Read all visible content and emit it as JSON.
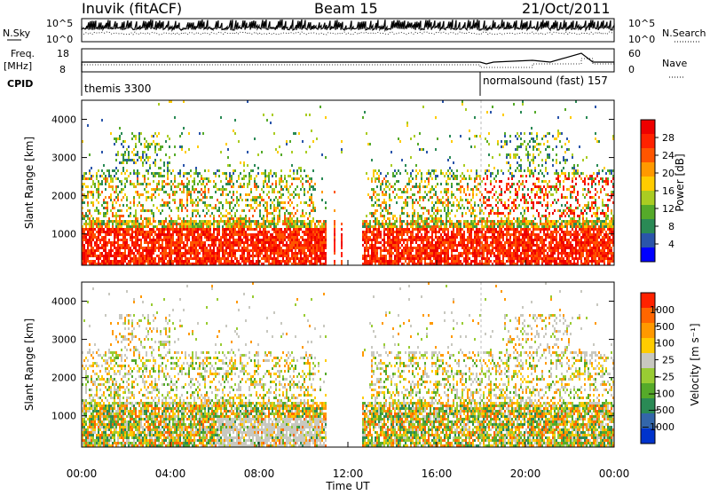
{
  "header": {
    "station": "Inuvik (fitACF)",
    "beam": "Beam 15",
    "date": "21/Oct/2011"
  },
  "panels": {
    "nsky": {
      "left_label": "N.Sky",
      "right_label": "N.Search",
      "ticks_left": [
        "10^5",
        "10^0"
      ],
      "ticks_right": [
        "10^5",
        "10^0"
      ]
    },
    "freq": {
      "left_label_1": "Freq.",
      "left_label_2": "[MHz]",
      "right_label": "Nave",
      "ticks_left": [
        "18",
        "8"
      ],
      "ticks_right": [
        "60",
        "0"
      ]
    },
    "cpid": {
      "left_label": "CPID",
      "segments": [
        "themis 3300",
        "normalsound (fast) 157"
      ],
      "switch_time": 18.0
    }
  },
  "colorbars": {
    "power": {
      "label": "Power [dB]",
      "ticks": [
        "28",
        "24",
        "20",
        "16",
        "12",
        "8",
        "4"
      ],
      "colors": [
        "#0000ff",
        "#2a55aa",
        "#2a8a55",
        "#55aa2a",
        "#aacc22",
        "#ffcc00",
        "#ff9900",
        "#ff5500",
        "#ff2200",
        "#ee0000"
      ]
    },
    "velocity": {
      "label": "Velocity [m s⁻¹]",
      "ticks": [
        "1000",
        "500",
        "100",
        "25",
        "−25",
        "−100",
        "−500",
        "−1000"
      ],
      "colors": [
        "#0033cc",
        "#3366aa",
        "#2a8a55",
        "#55aa2a",
        "#99cc33",
        "#c8c8c0",
        "#ffcc00",
        "#ff9900",
        "#ff6600",
        "#ff2200"
      ]
    }
  },
  "chart_data": [
    {
      "type": "heatmap",
      "title": "Power",
      "ylabel": "Slant Range [km]",
      "xlabel": "Time UT",
      "xlim": [
        "00:00",
        "24:00"
      ],
      "ylim": [
        180,
        4500
      ],
      "yticks": [
        1000,
        2000,
        3000,
        4000
      ],
      "xticks": [
        "00:00",
        "04:00",
        "08:00",
        "12:00",
        "16:00",
        "20:00",
        "00:00"
      ],
      "colorbar": "power"
    },
    {
      "type": "heatmap",
      "title": "Velocity",
      "ylabel": "Slant Range [km]",
      "xlabel": "Time UT",
      "xlim": [
        "00:00",
        "24:00"
      ],
      "ylim": [
        180,
        4500
      ],
      "yticks": [
        1000,
        2000,
        3000,
        4000
      ],
      "xticks": [
        "00:00",
        "04:00",
        "08:00",
        "12:00",
        "16:00",
        "20:00",
        "00:00"
      ],
      "colorbar": "velocity"
    }
  ],
  "axis": {
    "xlabel": "Time UT"
  }
}
